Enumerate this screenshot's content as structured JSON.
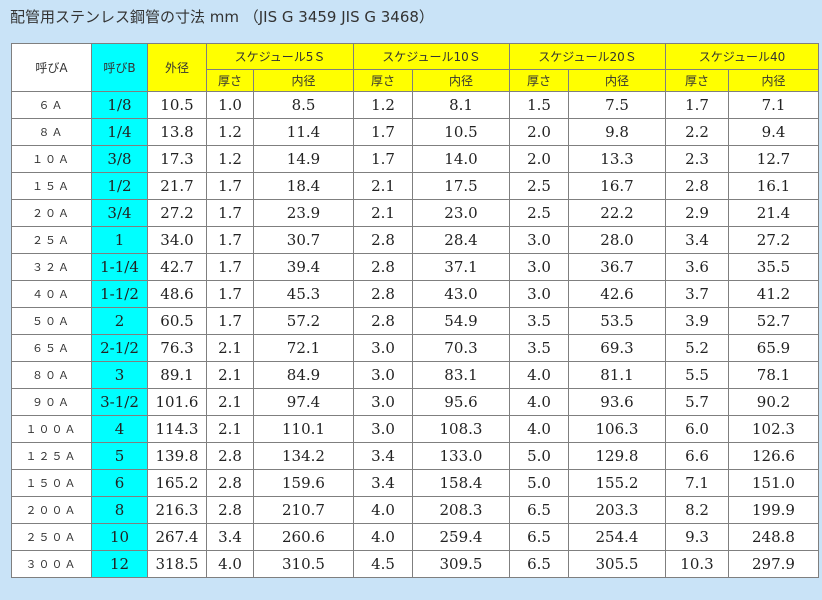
{
  "title": "配管用ステンレス鋼管の寸法 mm （JIS G 3459  JIS G 3468）",
  "header": {
    "nominal_a": "呼びA",
    "nominal_b": "呼びB",
    "outer_diameter": "外径",
    "schedules": [
      "スケジュール5Ｓ",
      "スケジュール10Ｓ",
      "スケジュール20Ｓ",
      "スケジュール40"
    ],
    "thickness": "厚さ",
    "inner_diameter": "内径"
  },
  "rows": [
    {
      "a": "６Ａ",
      "b": "1/8",
      "od": "10.5",
      "s5t": "1.0",
      "s5i": "8.5",
      "s10t": "1.2",
      "s10i": "8.1",
      "s20t": "1.5",
      "s20i": "7.5",
      "s40t": "1.7",
      "s40i": "7.1"
    },
    {
      "a": "８Ａ",
      "b": "1/4",
      "od": "13.8",
      "s5t": "1.2",
      "s5i": "11.4",
      "s10t": "1.7",
      "s10i": "10.5",
      "s20t": "2.0",
      "s20i": "9.8",
      "s40t": "2.2",
      "s40i": "9.4"
    },
    {
      "a": "１０Ａ",
      "b": "3/8",
      "od": "17.3",
      "s5t": "1.2",
      "s5i": "14.9",
      "s10t": "1.7",
      "s10i": "14.0",
      "s20t": "2.0",
      "s20i": "13.3",
      "s40t": "2.3",
      "s40i": "12.7"
    },
    {
      "a": "１５Ａ",
      "b": "1/2",
      "od": "21.7",
      "s5t": "1.7",
      "s5i": "18.4",
      "s10t": "2.1",
      "s10i": "17.5",
      "s20t": "2.5",
      "s20i": "16.7",
      "s40t": "2.8",
      "s40i": "16.1"
    },
    {
      "a": "２０Ａ",
      "b": "3/4",
      "od": "27.2",
      "s5t": "1.7",
      "s5i": "23.9",
      "s10t": "2.1",
      "s10i": "23.0",
      "s20t": "2.5",
      "s20i": "22.2",
      "s40t": "2.9",
      "s40i": "21.4"
    },
    {
      "a": "２５Ａ",
      "b": "1",
      "od": "34.0",
      "s5t": "1.7",
      "s5i": "30.7",
      "s10t": "2.8",
      "s10i": "28.4",
      "s20t": "3.0",
      "s20i": "28.0",
      "s40t": "3.4",
      "s40i": "27.2"
    },
    {
      "a": "３２Ａ",
      "b": "1-1/4",
      "od": "42.7",
      "s5t": "1.7",
      "s5i": "39.4",
      "s10t": "2.8",
      "s10i": "37.1",
      "s20t": "3.0",
      "s20i": "36.7",
      "s40t": "3.6",
      "s40i": "35.5"
    },
    {
      "a": "４０Ａ",
      "b": "1-1/2",
      "od": "48.6",
      "s5t": "1.7",
      "s5i": "45.3",
      "s10t": "2.8",
      "s10i": "43.0",
      "s20t": "3.0",
      "s20i": "42.6",
      "s40t": "3.7",
      "s40i": "41.2"
    },
    {
      "a": "５０Ａ",
      "b": "2",
      "od": "60.5",
      "s5t": "1.7",
      "s5i": "57.2",
      "s10t": "2.8",
      "s10i": "54.9",
      "s20t": "3.5",
      "s20i": "53.5",
      "s40t": "3.9",
      "s40i": "52.7"
    },
    {
      "a": "６５Ａ",
      "b": "2-1/2",
      "od": "76.3",
      "s5t": "2.1",
      "s5i": "72.1",
      "s10t": "3.0",
      "s10i": "70.3",
      "s20t": "3.5",
      "s20i": "69.3",
      "s40t": "5.2",
      "s40i": "65.9"
    },
    {
      "a": "８０Ａ",
      "b": "3",
      "od": "89.1",
      "s5t": "2.1",
      "s5i": "84.9",
      "s10t": "3.0",
      "s10i": "83.1",
      "s20t": "4.0",
      "s20i": "81.1",
      "s40t": "5.5",
      "s40i": "78.1"
    },
    {
      "a": "９０Ａ",
      "b": "3-1/2",
      "od": "101.6",
      "s5t": "2.1",
      "s5i": "97.4",
      "s10t": "3.0",
      "s10i": "95.6",
      "s20t": "4.0",
      "s20i": "93.6",
      "s40t": "5.7",
      "s40i": "90.2"
    },
    {
      "a": "１００Ａ",
      "b": "4",
      "od": "114.3",
      "s5t": "2.1",
      "s5i": "110.1",
      "s10t": "3.0",
      "s10i": "108.3",
      "s20t": "4.0",
      "s20i": "106.3",
      "s40t": "6.0",
      "s40i": "102.3"
    },
    {
      "a": "１２５Ａ",
      "b": "5",
      "od": "139.8",
      "s5t": "2.8",
      "s5i": "134.2",
      "s10t": "3.4",
      "s10i": "133.0",
      "s20t": "5.0",
      "s20i": "129.8",
      "s40t": "6.6",
      "s40i": "126.6"
    },
    {
      "a": "１５０Ａ",
      "b": "6",
      "od": "165.2",
      "s5t": "2.8",
      "s5i": "159.6",
      "s10t": "3.4",
      "s10i": "158.4",
      "s20t": "5.0",
      "s20i": "155.2",
      "s40t": "7.1",
      "s40i": "151.0"
    },
    {
      "a": "２００Ａ",
      "b": "8",
      "od": "216.3",
      "s5t": "2.8",
      "s5i": "210.7",
      "s10t": "4.0",
      "s10i": "208.3",
      "s20t": "6.5",
      "s20i": "203.3",
      "s40t": "8.2",
      "s40i": "199.9"
    },
    {
      "a": "２５０Ａ",
      "b": "10",
      "od": "267.4",
      "s5t": "3.4",
      "s5i": "260.6",
      "s10t": "4.0",
      "s10i": "259.4",
      "s20t": "6.5",
      "s20i": "254.4",
      "s40t": "9.3",
      "s40i": "248.8"
    },
    {
      "a": "３００Ａ",
      "b": "12",
      "od": "318.5",
      "s5t": "4.0",
      "s5i": "310.5",
      "s10t": "4.5",
      "s10i": "309.5",
      "s20t": "6.5",
      "s20i": "305.5",
      "s40t": "10.3",
      "s40i": "297.9"
    }
  ],
  "colors": {
    "page_background": "#c9e3f7",
    "header_yellow": "#ffff00",
    "nominal_b_cyan": "#00ffff",
    "border": "#7f7f7f"
  }
}
